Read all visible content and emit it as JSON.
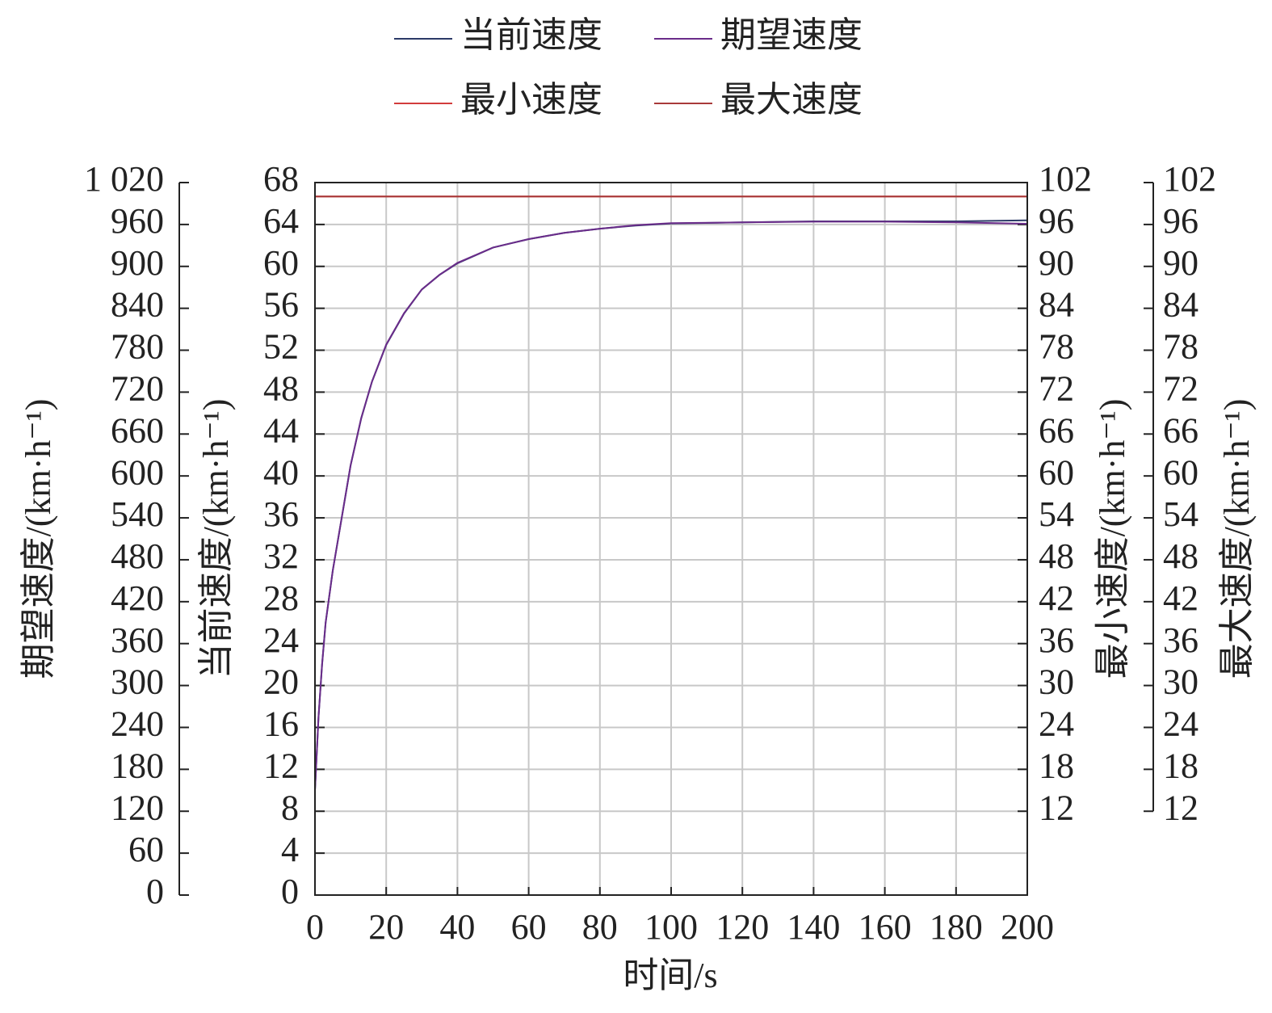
{
  "chart_data": {
    "type": "line",
    "x_label": "时间/s",
    "xlim": [
      0,
      200
    ],
    "xticks": [
      0,
      20,
      40,
      60,
      80,
      100,
      120,
      140,
      160,
      180,
      200
    ],
    "grid": true,
    "y_axes": [
      {
        "label": "期望速度/(km·h⁻¹)",
        "ylim": [
          0,
          1020
        ],
        "yticks": [
          0,
          60,
          120,
          180,
          240,
          300,
          360,
          420,
          480,
          540,
          600,
          660,
          720,
          780,
          840,
          900,
          960,
          {
            "value": 1020,
            "label": "1 020"
          }
        ]
      },
      {
        "label": "当前速度/(km·h⁻¹)",
        "ylim": [
          0,
          68
        ],
        "yticks": [
          0,
          4,
          8,
          12,
          16,
          20,
          24,
          28,
          32,
          36,
          40,
          44,
          48,
          52,
          56,
          60,
          64,
          68
        ]
      },
      {
        "label": "最小速度/(km·h⁻¹)",
        "ylim": [
          0,
          102
        ],
        "yticks": [
          12,
          18,
          24,
          30,
          36,
          42,
          48,
          54,
          60,
          66,
          72,
          78,
          84,
          90,
          96,
          102
        ]
      },
      {
        "label": "最大速度/(km·h⁻¹)",
        "ylim": [
          0,
          102
        ],
        "yticks": [
          12,
          18,
          24,
          30,
          36,
          42,
          48,
          54,
          60,
          66,
          72,
          78,
          84,
          90,
          96,
          102
        ]
      }
    ],
    "x": [
      0,
      1,
      2,
      3,
      5,
      7,
      10,
      13,
      16,
      20,
      25,
      30,
      35,
      40,
      50,
      60,
      70,
      80,
      90,
      100,
      120,
      140,
      160,
      180,
      200
    ],
    "series": [
      {
        "name": "当前速度",
        "color": "#2b3a67",
        "axis": 1,
        "values": [
          10,
          17,
          22,
          26,
          31,
          35,
          41,
          45.5,
          49,
          52.5,
          55.5,
          57.8,
          59.2,
          60.3,
          61.8,
          62.6,
          63.2,
          63.6,
          63.9,
          64.1,
          64.2,
          64.3,
          64.3,
          64.3,
          64.4
        ]
      },
      {
        "name": "期望速度",
        "color": "#6a2c8a",
        "axis": 0,
        "values": [
          150,
          255,
          330,
          390,
          465,
          525,
          615,
          683,
          735,
          788,
          833,
          867,
          888,
          905,
          927,
          939,
          948,
          954,
          959,
          962,
          963,
          964,
          964,
          963,
          961
        ]
      },
      {
        "name": "最小速度",
        "color": "#d23c3c",
        "axis": 2,
        "values": [
          100,
          100,
          100,
          100,
          100,
          100,
          100,
          100,
          100,
          100,
          100,
          100,
          100,
          100,
          100,
          100,
          100,
          100,
          100,
          100,
          100,
          100,
          100,
          100,
          100
        ]
      },
      {
        "name": "最大速度",
        "color": "#a83a3a",
        "axis": 3,
        "values": [
          100,
          100,
          100,
          100,
          100,
          100,
          100,
          100,
          100,
          100,
          100,
          100,
          100,
          100,
          100,
          100,
          100,
          100,
          100,
          100,
          100,
          100,
          100,
          100,
          100
        ]
      }
    ]
  }
}
